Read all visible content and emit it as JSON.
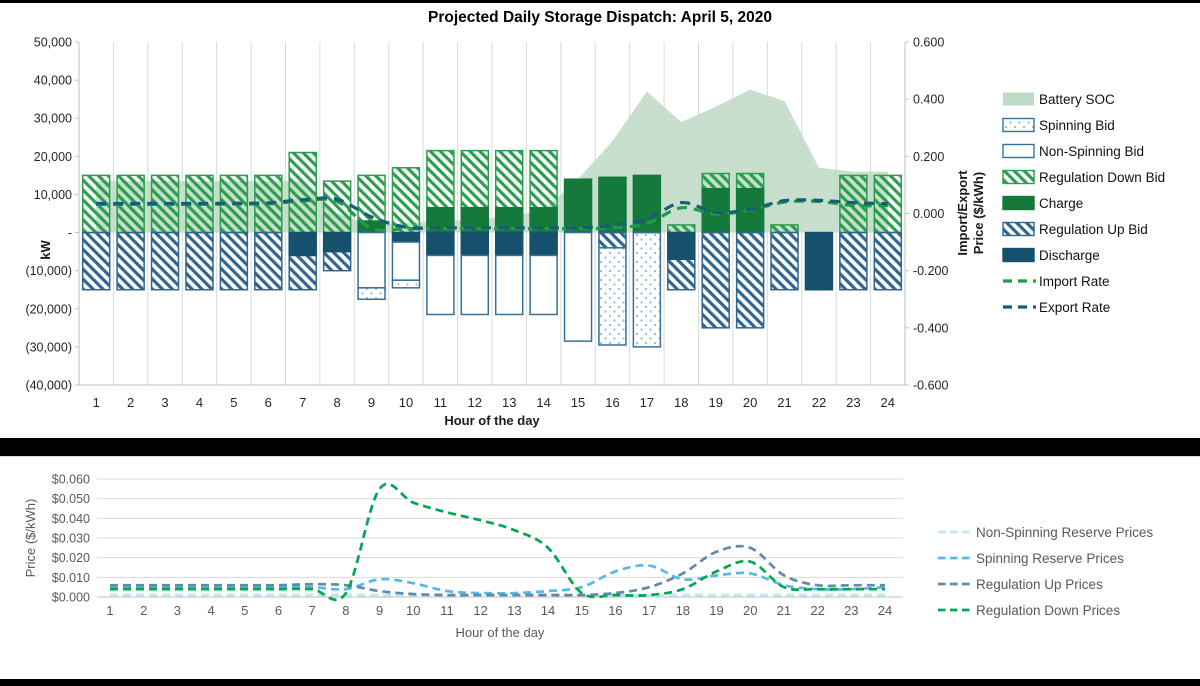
{
  "page": {
    "frame_color": "#000000",
    "panel_color": "#ffffff",
    "grid_color": "#d9d9d9",
    "axis_color": "#bfbfbf",
    "text_dark": "#1a1a1a",
    "text_gray": "#595959"
  },
  "chart_data": [
    {
      "type": "combo-bar-area-line",
      "title": "Projected Daily Storage Dispatch: April 5, 2020",
      "x_label": "Hour of the day",
      "hours": [
        1,
        2,
        3,
        4,
        5,
        6,
        7,
        8,
        9,
        10,
        11,
        12,
        13,
        14,
        15,
        16,
        17,
        18,
        19,
        20,
        21,
        22,
        23,
        24
      ],
      "y_left": {
        "label": "kW",
        "min": -40000,
        "max": 50000,
        "tick_step": 10000,
        "tick_labels": [
          "50,000",
          "40,000",
          "30,000",
          "20,000",
          "10,000",
          "-",
          "(10,000)",
          "(20,000)",
          "(30,000)",
          "(40,000)"
        ]
      },
      "y_right": {
        "label": "Import/Export Price ($/kWh)",
        "min": -0.6,
        "max": 0.6,
        "tick_labels": [
          "0.600",
          "0.400",
          "0.200",
          "0.000",
          "-0.200",
          "-0.400",
          "-0.600"
        ]
      },
      "area": {
        "name": "Battery SOC",
        "color": "#bed9c4",
        "values": [
          13500,
          13500,
          13500,
          13500,
          13500,
          13500,
          13500,
          5000,
          2000,
          2500,
          3000,
          3500,
          4000,
          6000,
          14000,
          24000,
          37000,
          29000,
          33000,
          37500,
          34500,
          17000,
          16000,
          16000
        ]
      },
      "bars": [
        {
          "key": "regulation_down_bid",
          "name": "Regulation Down Bid",
          "style": "hatch",
          "color": "#2b9e4e",
          "border": "#2b9e4e",
          "segments": [
            [
              0,
              15000
            ],
            [
              0,
              15000
            ],
            [
              0,
              15000
            ],
            [
              0,
              15000
            ],
            [
              0,
              15000
            ],
            [
              0,
              15000
            ],
            [
              0,
              21000
            ],
            [
              0,
              13500
            ],
            [
              3000,
              15000
            ],
            [
              0,
              17000
            ],
            [
              6500,
              21500
            ],
            [
              6500,
              21500
            ],
            [
              6500,
              21500
            ],
            [
              6500,
              21500
            ],
            null,
            null,
            null,
            [
              0,
              2000
            ],
            [
              11500,
              15500
            ],
            [
              11500,
              15500
            ],
            [
              0,
              2000
            ],
            null,
            [
              0,
              15000
            ],
            [
              0,
              15000
            ]
          ]
        },
        {
          "key": "charge",
          "name": "Charge",
          "style": "solid",
          "color": "#15793c",
          "border": "#15793c",
          "segments": [
            null,
            null,
            null,
            null,
            null,
            null,
            null,
            null,
            [
              0,
              3000
            ],
            null,
            [
              0,
              6500
            ],
            [
              0,
              6500
            ],
            [
              0,
              6500
            ],
            [
              0,
              6500
            ],
            [
              0,
              14000
            ],
            [
              0,
              14500
            ],
            [
              0,
              15000
            ],
            null,
            [
              0,
              11500
            ],
            [
              0,
              11500
            ],
            null,
            null,
            null,
            null
          ]
        },
        {
          "key": "regulation_up_bid",
          "name": "Regulation Up Bid",
          "style": "hatch",
          "color": "#31658f",
          "border": "#31658f",
          "segments": [
            [
              0,
              -15000
            ],
            [
              0,
              -15000
            ],
            [
              0,
              -15000
            ],
            [
              0,
              -15000
            ],
            [
              0,
              -15000
            ],
            [
              0,
              -15000
            ],
            [
              -6000,
              -15000
            ],
            [
              -5000,
              -10000
            ],
            null,
            null,
            null,
            null,
            null,
            null,
            null,
            [
              0,
              -4000
            ],
            null,
            [
              -7000,
              -15000
            ],
            [
              0,
              -25000
            ],
            [
              0,
              -25000
            ],
            [
              0,
              -15000
            ],
            null,
            [
              0,
              -15000
            ],
            [
              0,
              -15000
            ]
          ]
        },
        {
          "key": "discharge",
          "name": "Discharge",
          "style": "solid",
          "color": "#16506c",
          "border": "#16506c",
          "segments": [
            null,
            null,
            null,
            null,
            null,
            null,
            [
              0,
              -6000
            ],
            [
              0,
              -5000
            ],
            null,
            [
              0,
              -2500
            ],
            [
              0,
              -6000
            ],
            [
              0,
              -6000
            ],
            [
              0,
              -6000
            ],
            [
              0,
              -6000
            ],
            null,
            null,
            null,
            [
              0,
              -7000
            ],
            null,
            null,
            null,
            [
              0,
              -15000
            ],
            null,
            null
          ]
        },
        {
          "key": "non_spinning_bid",
          "name": "Non-Spinning Bid",
          "style": "hollow",
          "color": "#ffffff",
          "border": "#35719a",
          "segments": [
            null,
            null,
            null,
            null,
            null,
            null,
            null,
            null,
            [
              0,
              -14500
            ],
            [
              -2500,
              -12500
            ],
            [
              -6000,
              -21500
            ],
            [
              -6000,
              -21500
            ],
            [
              -6000,
              -21500
            ],
            [
              -6000,
              -21500
            ],
            [
              0,
              -28500
            ],
            null,
            null,
            null,
            null,
            null,
            null,
            null,
            null,
            null
          ]
        },
        {
          "key": "spinning_bid",
          "name": "Spinning Bid",
          "style": "dotted",
          "color": "#8bb8d9",
          "border": "#35719a",
          "segments": [
            null,
            null,
            null,
            null,
            null,
            null,
            null,
            null,
            [
              -14500,
              -17500
            ],
            [
              -12500,
              -14500
            ],
            null,
            null,
            null,
            null,
            null,
            [
              -4000,
              -29500
            ],
            [
              0,
              -30000
            ],
            null,
            null,
            null,
            null,
            null,
            null,
            null
          ]
        }
      ],
      "lines": [
        {
          "name": "Import Rate",
          "color": "#1f9c48",
          "values": [
            0.032,
            0.032,
            0.032,
            0.032,
            0.033,
            0.034,
            0.044,
            0.042,
            -0.052,
            -0.053,
            -0.053,
            -0.053,
            -0.053,
            -0.053,
            -0.053,
            -0.05,
            -0.035,
            0.02,
            -0.002,
            0.012,
            0.04,
            0.042,
            0.028,
            0.028
          ]
        },
        {
          "name": "Export Rate",
          "color": "#1a5b78",
          "values": [
            0.035,
            0.035,
            0.035,
            0.035,
            0.036,
            0.037,
            0.048,
            0.05,
            -0.012,
            -0.048,
            -0.05,
            -0.05,
            -0.05,
            -0.05,
            -0.05,
            -0.042,
            -0.02,
            0.038,
            0.004,
            0.015,
            0.045,
            0.046,
            0.038,
            0.034
          ]
        }
      ],
      "legend_order": [
        "Battery SOC",
        "Spinning Bid",
        "Non-Spinning Bid",
        "Regulation Down Bid",
        "Charge",
        "Regulation Up Bid",
        "Discharge",
        "Import Rate",
        "Export Rate"
      ]
    },
    {
      "type": "line",
      "x_label": "Hour of the day",
      "y_label": "Price ($/kWh)",
      "hours": [
        1,
        2,
        3,
        4,
        5,
        6,
        7,
        8,
        9,
        10,
        11,
        12,
        13,
        14,
        15,
        16,
        17,
        18,
        19,
        20,
        21,
        22,
        23,
        24
      ],
      "y": {
        "min": 0,
        "max": 0.06,
        "tick_labels": [
          "$0.060",
          "$0.050",
          "$0.040",
          "$0.030",
          "$0.020",
          "$0.010",
          "$0.000"
        ]
      },
      "series": [
        {
          "name": "Non-Spinning Reserve Prices",
          "color": "#bfe6f7",
          "values": [
            0.001,
            0.001,
            0.001,
            0.001,
            0.001,
            0.001,
            0.001,
            0.001,
            0.001,
            0.001,
            0.001,
            0.001,
            0.001,
            0.001,
            0.001,
            0.001,
            0.001,
            0.001,
            0.001,
            0.001,
            0.001,
            0.001,
            0.001,
            0.001
          ]
        },
        {
          "name": "Spinning Reserve Prices",
          "color": "#56b9ea",
          "values": [
            0.005,
            0.005,
            0.005,
            0.005,
            0.005,
            0.005,
            0.005,
            0.004,
            0.009,
            0.007,
            0.003,
            0.002,
            0.002,
            0.003,
            0.005,
            0.013,
            0.016,
            0.009,
            0.011,
            0.012,
            0.006,
            0.004,
            0.004,
            0.005
          ]
        },
        {
          "name": "Regulation Up Prices",
          "color": "#6289a9",
          "values": [
            0.006,
            0.006,
            0.006,
            0.006,
            0.006,
            0.006,
            0.0065,
            0.006,
            0.003,
            0.0015,
            0.001,
            0.001,
            0.001,
            0.001,
            0.001,
            0.002,
            0.005,
            0.012,
            0.023,
            0.025,
            0.011,
            0.006,
            0.006,
            0.006
          ]
        },
        {
          "name": "Regulation Down Prices",
          "color": "#00a651",
          "values": [
            0.004,
            0.004,
            0.004,
            0.004,
            0.004,
            0.004,
            0.004,
            0.002,
            0.055,
            0.048,
            0.043,
            0.039,
            0.034,
            0.025,
            0.002,
            0.001,
            0.001,
            0.004,
            0.013,
            0.018,
            0.005,
            0.004,
            0.004,
            0.004
          ]
        }
      ]
    }
  ]
}
